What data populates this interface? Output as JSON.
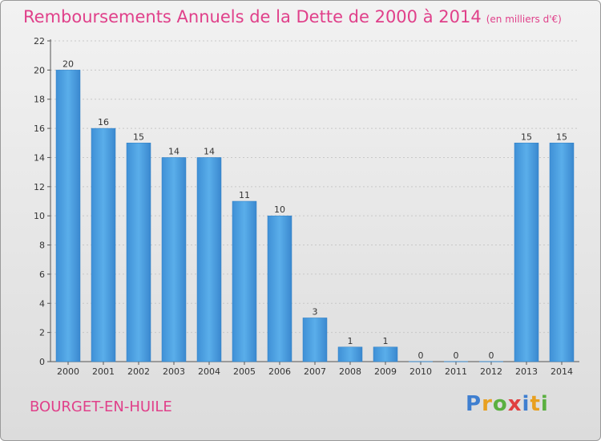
{
  "title": "Remboursements Annuels de la Dette de 2000 à 2014",
  "subtitle": "(en milliers d'€)",
  "town": "BOURGET-EN-HUILE",
  "logo": "Proxiti",
  "colors": {
    "bar": "#4a9de0",
    "bar_dark": "#2f7fc4",
    "accent": "#e0408a"
  },
  "chart_data": {
    "type": "bar",
    "title": "Remboursements Annuels de la Dette de 2000 à 2014",
    "subtitle": "(en milliers d'€)",
    "categories": [
      "2000",
      "2001",
      "2002",
      "2003",
      "2004",
      "2005",
      "2006",
      "2007",
      "2008",
      "2009",
      "2010",
      "2011",
      "2012",
      "2013",
      "2014"
    ],
    "values": [
      20,
      16,
      15,
      14,
      14,
      11,
      10,
      3,
      1,
      1,
      0,
      0,
      0,
      15,
      15
    ],
    "ylim": [
      0,
      22
    ],
    "yticks": [
      0,
      2,
      4,
      6,
      8,
      10,
      12,
      14,
      16,
      18,
      20,
      22
    ],
    "grid": true,
    "data_labels": true
  }
}
